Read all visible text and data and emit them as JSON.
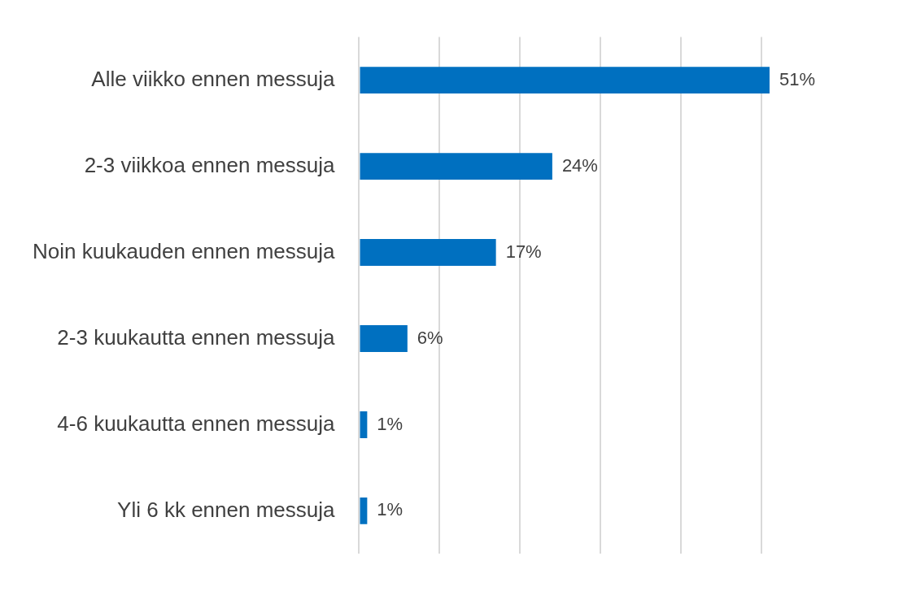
{
  "chart_data": {
    "type": "bar",
    "orientation": "horizontal",
    "categories": [
      "Alle viikko ennen messuja",
      "2-3 viikkoa ennen messuja",
      "Noin kuukauden ennen messuja",
      "2-3 kuukautta ennen messuja",
      "4-6 kuukautta ennen messuja",
      "Yli 6 kk ennen messuja"
    ],
    "values": [
      51,
      24,
      17,
      6,
      1,
      1
    ],
    "value_labels": [
      "51%",
      "24%",
      "17%",
      "6%",
      "1%",
      "1%"
    ],
    "color": "#0070c0",
    "xticks": [
      {
        "value": 0,
        "label": null
      },
      {
        "value": 10,
        "label": null
      },
      {
        "value": 20,
        "label": null
      },
      {
        "value": 30,
        "label": null
      },
      {
        "value": 40,
        "label": null
      },
      {
        "value": 50,
        "label": null
      }
    ],
    "grid": "x",
    "tick_labels": "y",
    "legend": false
  }
}
